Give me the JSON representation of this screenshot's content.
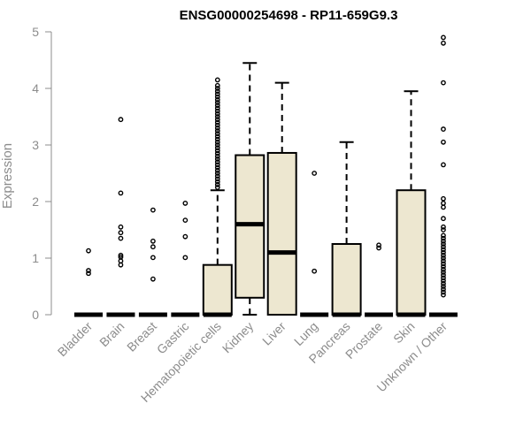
{
  "chart_data": {
    "type": "box",
    "title": "ENSG00000254698 - RP11-659G9.3",
    "xlabel": "",
    "ylabel": "Expression",
    "ylim": [
      0,
      5
    ],
    "yticks": [
      0,
      1,
      2,
      3,
      4,
      5
    ],
    "box_fill": "#ede7d0",
    "categories": [
      "Bladder",
      "Brain",
      "Breast",
      "Gastric",
      "Hematopoietic cells",
      "Kidney",
      "Liver",
      "Lung",
      "Pancreas",
      "Prostate",
      "Skin",
      "Unknown / Other"
    ],
    "boxes": [
      {
        "q1": 0,
        "median": 0,
        "q3": 0,
        "whisker_low": 0,
        "whisker_high": 0,
        "outliers": [
          0.73,
          0.78,
          1.13
        ]
      },
      {
        "q1": 0,
        "median": 0,
        "q3": 0,
        "whisker_low": 0,
        "whisker_high": 0,
        "outliers": [
          0.88,
          0.95,
          1.02,
          1.05,
          1.35,
          1.45,
          1.55,
          2.15,
          3.45
        ]
      },
      {
        "q1": 0,
        "median": 0,
        "q3": 0,
        "whisker_low": 0,
        "whisker_high": 0,
        "outliers": [
          0.63,
          1.01,
          1.2,
          1.3,
          1.85
        ]
      },
      {
        "q1": 0,
        "median": 0,
        "q3": 0,
        "whisker_low": 0,
        "whisker_high": 0,
        "outliers": [
          1.01,
          1.38,
          1.67,
          1.97
        ]
      },
      {
        "q1": 0,
        "median": 0,
        "q3": 0.88,
        "whisker_low": 0,
        "whisker_high": 2.2,
        "outliers": [
          2.25,
          2.3,
          2.35,
          2.4,
          2.45,
          2.5,
          2.55,
          2.6,
          2.65,
          2.7,
          2.75,
          2.8,
          2.85,
          2.9,
          2.95,
          3.0,
          3.05,
          3.1,
          3.15,
          3.2,
          3.25,
          3.3,
          3.35,
          3.4,
          3.45,
          3.5,
          3.55,
          3.6,
          3.65,
          3.7,
          3.75,
          3.8,
          3.85,
          3.9,
          3.95,
          4.0,
          4.05,
          4.15
        ]
      },
      {
        "q1": 0.3,
        "median": 1.6,
        "q3": 2.82,
        "whisker_low": 0,
        "whisker_high": 4.45,
        "outliers": []
      },
      {
        "q1": 0,
        "median": 1.1,
        "q3": 2.86,
        "whisker_low": 0,
        "whisker_high": 4.1,
        "outliers": []
      },
      {
        "q1": 0,
        "median": 0,
        "q3": 0,
        "whisker_low": 0,
        "whisker_high": 0,
        "outliers": [
          0.77,
          2.5
        ]
      },
      {
        "q1": 0,
        "median": 0,
        "q3": 1.25,
        "whisker_low": 0,
        "whisker_high": 3.05,
        "outliers": []
      },
      {
        "q1": 0,
        "median": 0,
        "q3": 0,
        "whisker_low": 0,
        "whisker_high": 0,
        "outliers": [
          1.18,
          1.23
        ]
      },
      {
        "q1": 0,
        "median": 0,
        "q3": 2.2,
        "whisker_low": 0,
        "whisker_high": 3.95,
        "outliers": []
      },
      {
        "q1": 0,
        "median": 0,
        "q3": 0,
        "whisker_low": 0,
        "whisker_high": 0,
        "outliers": [
          0.35,
          0.4,
          0.45,
          0.5,
          0.55,
          0.6,
          0.65,
          0.7,
          0.75,
          0.8,
          0.85,
          0.9,
          0.95,
          1.0,
          1.05,
          1.1,
          1.15,
          1.2,
          1.25,
          1.3,
          1.35,
          1.4,
          1.5,
          1.55,
          1.7,
          1.9,
          1.97,
          2.05,
          2.65,
          3.05,
          3.28,
          4.1,
          4.8,
          4.9
        ]
      }
    ]
  }
}
